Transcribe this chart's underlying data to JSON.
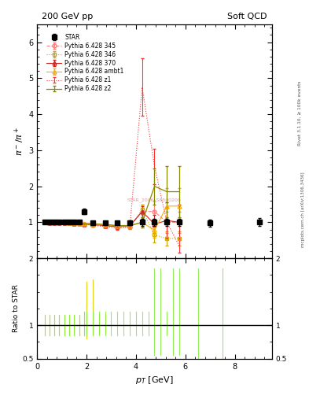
{
  "title_left": "200 GeV pp",
  "title_right": "Soft QCD",
  "ylabel_main": "$\\pi^- / \\pi^+$",
  "ylabel_ratio": "Ratio to STAR",
  "xlabel": "$p_T$ [GeV]",
  "right_label_top": "Rivet 3.1.10, ≥ 100k events",
  "right_label_bot": "mcplots.cern.ch [arXiv:1306.3436]",
  "watermark": "STAR_2006_S6500200",
  "ylim_main": [
    0.0,
    6.5
  ],
  "ylim_ratio": [
    0.5,
    2.0
  ],
  "xlim": [
    0,
    9.5
  ],
  "yticks_main": [
    1,
    2,
    3,
    4,
    5,
    6
  ],
  "yticks_ratio": [
    0.5,
    1.0,
    2.0
  ],
  "star_x": [
    0.3,
    0.5,
    0.7,
    0.9,
    1.1,
    1.3,
    1.5,
    1.7,
    1.9,
    2.25,
    2.75,
    3.25,
    3.75,
    4.25,
    4.75,
    5.25,
    5.75,
    7.0,
    9.0
  ],
  "star_y": [
    1.02,
    1.01,
    1.01,
    1.01,
    1.02,
    1.02,
    1.02,
    1.02,
    1.3,
    0.99,
    0.99,
    0.99,
    0.99,
    1.0,
    1.0,
    1.0,
    1.0,
    0.98,
    1.01
  ],
  "star_yerr": [
    0.02,
    0.02,
    0.02,
    0.02,
    0.02,
    0.02,
    0.02,
    0.02,
    0.08,
    0.03,
    0.04,
    0.05,
    0.07,
    0.09,
    0.09,
    0.1,
    0.1,
    0.1,
    0.1
  ],
  "p345_x": [
    0.3,
    0.5,
    0.7,
    0.9,
    1.1,
    1.3,
    1.5,
    1.7,
    1.9,
    2.25,
    2.75,
    3.25,
    3.75,
    4.25,
    4.75,
    5.25,
    5.75
  ],
  "p345_y": [
    1.0,
    0.99,
    0.99,
    0.99,
    0.99,
    0.98,
    0.97,
    0.96,
    0.95,
    0.93,
    0.9,
    0.88,
    0.88,
    1.3,
    1.3,
    1.0,
    1.0
  ],
  "p345_yerr": [
    0.01,
    0.01,
    0.01,
    0.01,
    0.01,
    0.01,
    0.01,
    0.01,
    0.02,
    0.02,
    0.03,
    0.04,
    0.05,
    0.2,
    0.3,
    0.3,
    0.3
  ],
  "p346_x": [
    0.3,
    0.5,
    0.7,
    0.9,
    1.1,
    1.3,
    1.5,
    1.7,
    1.9,
    2.25,
    2.75,
    3.25,
    3.75,
    4.25,
    4.75,
    5.25,
    5.75
  ],
  "p346_y": [
    1.0,
    0.99,
    0.99,
    0.99,
    0.99,
    0.98,
    0.97,
    0.96,
    0.95,
    0.93,
    0.91,
    0.87,
    0.88,
    1.35,
    0.65,
    0.55,
    0.55
  ],
  "p346_yerr": [
    0.01,
    0.01,
    0.01,
    0.01,
    0.01,
    0.01,
    0.01,
    0.01,
    0.02,
    0.02,
    0.03,
    0.04,
    0.05,
    0.15,
    0.2,
    0.2,
    0.2
  ],
  "p370_x": [
    0.3,
    0.5,
    0.7,
    0.9,
    1.1,
    1.3,
    1.5,
    1.7,
    1.9,
    2.25,
    2.75,
    3.25,
    3.75,
    4.25,
    4.75,
    5.25,
    5.75
  ],
  "p370_y": [
    1.0,
    0.99,
    0.99,
    0.99,
    0.99,
    0.98,
    0.97,
    0.96,
    0.95,
    0.94,
    0.91,
    0.88,
    0.9,
    1.3,
    0.95,
    1.05,
    1.0
  ],
  "p370_yerr": [
    0.01,
    0.01,
    0.01,
    0.01,
    0.01,
    0.01,
    0.01,
    0.01,
    0.02,
    0.02,
    0.03,
    0.04,
    0.05,
    0.15,
    0.25,
    0.5,
    0.5
  ],
  "pambt1_x": [
    0.3,
    0.5,
    0.7,
    0.9,
    1.1,
    1.3,
    1.5,
    1.7,
    1.9,
    2.25,
    2.75,
    3.25,
    3.75,
    4.25,
    4.75,
    5.25,
    5.75
  ],
  "pambt1_y": [
    1.0,
    1.0,
    1.0,
    1.0,
    1.0,
    0.99,
    0.98,
    0.97,
    0.96,
    0.95,
    0.93,
    0.9,
    0.9,
    1.0,
    0.78,
    1.45,
    1.45
  ],
  "pambt1_yerr": [
    0.01,
    0.01,
    0.01,
    0.01,
    0.01,
    0.01,
    0.01,
    0.01,
    0.02,
    0.02,
    0.03,
    0.04,
    0.05,
    0.15,
    0.2,
    0.5,
    0.5
  ],
  "pz1_x": [
    0.3,
    0.5,
    0.7,
    0.9,
    1.1,
    1.3,
    1.5,
    1.7,
    1.9,
    2.25,
    2.75,
    3.25,
    3.75,
    4.25,
    4.75,
    5.25,
    5.75
  ],
  "pz1_y": [
    1.0,
    0.99,
    0.99,
    0.99,
    0.99,
    0.98,
    0.97,
    0.96,
    0.94,
    0.92,
    0.88,
    0.84,
    0.86,
    4.75,
    2.55,
    1.0,
    0.35
  ],
  "pz1_yerr": [
    0.01,
    0.01,
    0.01,
    0.01,
    0.01,
    0.01,
    0.01,
    0.01,
    0.02,
    0.02,
    0.03,
    0.04,
    0.05,
    0.8,
    0.5,
    0.4,
    0.2
  ],
  "pz2_x": [
    0.3,
    0.5,
    0.7,
    0.9,
    1.1,
    1.3,
    1.5,
    1.7,
    1.9,
    2.25,
    2.75,
    3.25,
    3.75,
    4.25,
    4.75,
    5.25,
    5.75
  ],
  "pz2_y": [
    1.0,
    1.0,
    1.0,
    1.0,
    1.0,
    0.99,
    0.98,
    0.98,
    0.97,
    0.96,
    0.94,
    0.91,
    0.91,
    1.0,
    2.0,
    1.85,
    1.85
  ],
  "pz2_yerr": [
    0.01,
    0.01,
    0.01,
    0.01,
    0.01,
    0.01,
    0.01,
    0.01,
    0.02,
    0.02,
    0.03,
    0.04,
    0.05,
    0.15,
    0.5,
    0.7,
    0.7
  ],
  "color_star": "#000000",
  "color_p345": "#ff8080",
  "color_p346": "#ccaa00",
  "color_p370": "#cc2222",
  "color_pambt1": "#ffaa00",
  "color_pz1": "#ff3333",
  "color_pz2": "#888800",
  "ratio_yellow_x": [
    0.3,
    0.5,
    0.7,
    0.9,
    1.1,
    1.3,
    1.5,
    1.7,
    1.9,
    2.0,
    2.25,
    2.5,
    2.75
  ],
  "ratio_yellow_lo": [
    0.85,
    0.85,
    0.85,
    0.85,
    0.85,
    0.85,
    0.85,
    0.85,
    0.85,
    0.8,
    0.85,
    0.88,
    0.88
  ],
  "ratio_yellow_hi": [
    1.15,
    1.15,
    1.15,
    1.15,
    1.15,
    1.15,
    1.15,
    1.15,
    1.2,
    1.65,
    1.68,
    1.15,
    1.15
  ],
  "ratio_green_x": [
    0.3,
    0.5,
    0.7,
    0.9,
    1.1,
    1.3,
    1.5,
    1.7,
    1.9,
    2.0,
    2.25,
    2.5,
    2.75,
    3.0,
    3.25,
    3.5,
    3.75,
    4.0,
    4.25,
    4.5,
    4.75,
    5.0,
    5.25,
    5.5,
    5.75,
    6.5,
    7.5
  ],
  "ratio_green_lo": [
    0.85,
    0.85,
    0.85,
    0.85,
    0.85,
    0.85,
    0.85,
    0.85,
    0.85,
    0.85,
    0.85,
    0.85,
    0.85,
    0.85,
    0.85,
    0.85,
    0.85,
    0.85,
    0.85,
    0.85,
    0.55,
    0.55,
    0.85,
    0.55,
    0.55,
    0.45,
    0.45
  ],
  "ratio_green_hi": [
    1.15,
    1.15,
    1.15,
    1.15,
    1.15,
    1.15,
    1.15,
    1.15,
    1.2,
    1.2,
    1.2,
    1.2,
    1.2,
    1.2,
    1.2,
    1.2,
    1.2,
    1.2,
    1.2,
    1.2,
    1.85,
    1.85,
    1.2,
    1.85,
    1.85,
    1.85,
    1.85
  ],
  "background": "#ffffff"
}
